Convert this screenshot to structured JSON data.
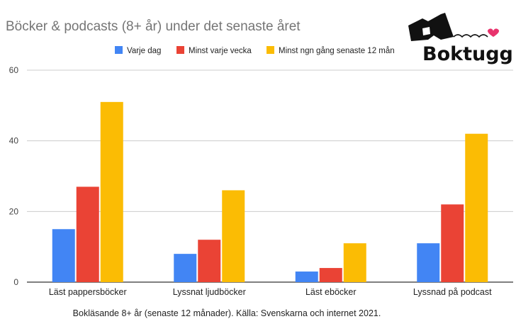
{
  "chart_data": {
    "type": "bar",
    "title": "Böcker & podcasts (8+ år) under det senaste året",
    "categories": [
      "Läst pappersböcker",
      "Lyssnat ljudböcker",
      "Läst eböcker",
      "Lyssnad på podcast"
    ],
    "series": [
      {
        "name": "Varje dag",
        "color": "#4285f4",
        "values": [
          15,
          8,
          3,
          11
        ]
      },
      {
        "name": "Minst varje vecka",
        "color": "#ea4335",
        "values": [
          27,
          12,
          4,
          22
        ]
      },
      {
        "name": "Minst ngn gång senaste 12 mån",
        "color": "#fbbc04",
        "values": [
          51,
          26,
          11,
          42
        ]
      }
    ],
    "ylim": [
      0,
      60
    ],
    "yticks": [
      0,
      20,
      40,
      60
    ],
    "xlabel": "Bokläsande 8+ år (senaste 12 månader). Källa: Svenskarna och internet 2021.",
    "ylabel": "",
    "grid": true,
    "legend_position": "top"
  },
  "logo": {
    "text": "Boktugg",
    "icon": "book-heart-logo-icon",
    "heart_color": "#e8336d"
  }
}
